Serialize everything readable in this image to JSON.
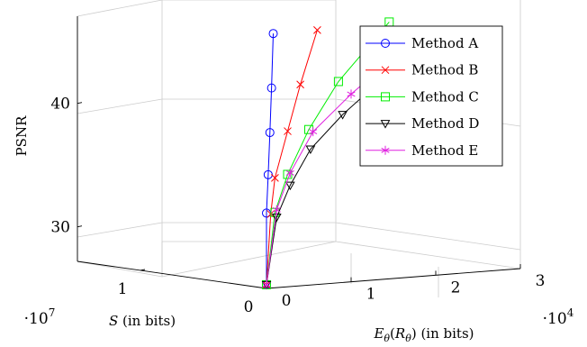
{
  "chart_data": {
    "type": "line",
    "projection": "3d",
    "xlabel": "S (in bits)",
    "x_multiplier": "·10^7",
    "ylabel": "E_θ(R_θ) (in bits)",
    "y_multiplier": "·10^4",
    "zlabel": "PSNR",
    "xlim": [
      0,
      1.5
    ],
    "ylim": [
      0,
      3
    ],
    "zlim": [
      27,
      50
    ],
    "x_ticks": [
      "0",
      "1"
    ],
    "y_ticks": [
      "0",
      "1",
      "2",
      "3"
    ],
    "z_ticks": [
      "30",
      "40"
    ],
    "grid": true,
    "legend_position": "top-right",
    "series": [
      {
        "name": "Method A",
        "color": "#0000ff",
        "marker": "circle",
        "points": [
          {
            "s": 0.0,
            "e": 0.0,
            "psnr": 27.5
          },
          {
            "s": 0.0,
            "e": 0.0,
            "psnr": 33.3
          },
          {
            "s": 0.0,
            "e": 0.02,
            "psnr": 36.4
          },
          {
            "s": 0.0,
            "e": 0.04,
            "psnr": 39.8
          },
          {
            "s": 0.0,
            "e": 0.06,
            "psnr": 43.4
          },
          {
            "s": 0.0,
            "e": 0.08,
            "psnr": 47.8
          }
        ]
      },
      {
        "name": "Method B",
        "color": "#ff0000",
        "marker": "x",
        "points": [
          {
            "s": 0.0,
            "e": 0.0,
            "psnr": 27.5
          },
          {
            "s": 0.0,
            "e": 0.05,
            "psnr": 33.2
          },
          {
            "s": 0.0,
            "e": 0.1,
            "psnr": 36.1
          },
          {
            "s": 0.0,
            "e": 0.25,
            "psnr": 39.8
          },
          {
            "s": 0.0,
            "e": 0.4,
            "psnr": 43.5
          },
          {
            "s": 0.0,
            "e": 0.6,
            "psnr": 47.8
          }
        ]
      },
      {
        "name": "Method C",
        "color": "#00ee00",
        "marker": "square",
        "points": [
          {
            "s": 0.0,
            "e": 0.0,
            "psnr": 27.5
          },
          {
            "s": 0.0,
            "e": 0.1,
            "psnr": 33.3
          },
          {
            "s": 0.0,
            "e": 0.25,
            "psnr": 36.3
          },
          {
            "s": 0.0,
            "e": 0.5,
            "psnr": 39.8
          },
          {
            "s": 0.0,
            "e": 0.85,
            "psnr": 43.5
          },
          {
            "s": 0.0,
            "e": 1.45,
            "psnr": 48.0
          }
        ]
      },
      {
        "name": "Method D",
        "color": "#000000",
        "marker": "triangle-down",
        "points": [
          {
            "s": 0.0,
            "e": 0.0,
            "psnr": 27.5
          },
          {
            "s": 0.0,
            "e": 0.12,
            "psnr": 32.9
          },
          {
            "s": 0.0,
            "e": 0.28,
            "psnr": 35.4
          },
          {
            "s": 0.0,
            "e": 0.52,
            "psnr": 38.2
          },
          {
            "s": 0.0,
            "e": 0.9,
            "psnr": 40.8
          },
          {
            "s": 0.0,
            "e": 1.4,
            "psnr": 43.6
          }
        ]
      },
      {
        "name": "Method E",
        "color": "#e020e0",
        "marker": "star",
        "points": [
          {
            "s": 0.0,
            "e": 0.0,
            "psnr": 27.5
          },
          {
            "s": 0.0,
            "e": 0.12,
            "psnr": 33.5
          },
          {
            "s": 0.0,
            "e": 0.28,
            "psnr": 36.4
          },
          {
            "s": 0.0,
            "e": 0.55,
            "psnr": 39.6
          },
          {
            "s": 0.0,
            "e": 1.0,
            "psnr": 42.4
          },
          {
            "s": 0.0,
            "e": 1.6,
            "psnr": 45.6
          }
        ]
      }
    ]
  }
}
